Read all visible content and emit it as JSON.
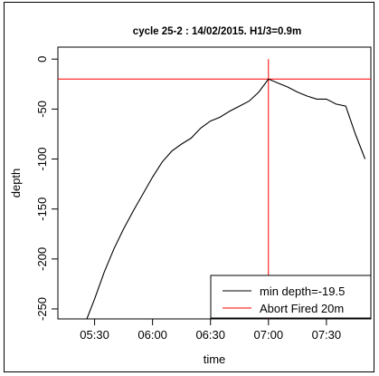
{
  "chart_data": {
    "type": "line",
    "title": "cycle 25-2 : 14/02/2015. H1/3=0.9m",
    "xlabel": "time",
    "ylabel": "depth",
    "xlim": [
      "05:11",
      "07:53"
    ],
    "ylim": [
      -260,
      12
    ],
    "x_ticks": [
      "05:30",
      "06:00",
      "06:30",
      "07:00",
      "07:30"
    ],
    "y_ticks": [
      0,
      -50,
      -100,
      -150,
      -200,
      -250
    ],
    "grid": false,
    "legend_position": "bottom-right",
    "series": [
      {
        "name": "min depth=-19.5",
        "color": "#000000",
        "x": [
          "05:26",
          "05:30",
          "05:35",
          "05:40",
          "05:45",
          "05:50",
          "05:55",
          "06:00",
          "06:05",
          "06:10",
          "06:15",
          "06:20",
          "06:25",
          "06:30",
          "06:35",
          "06:40",
          "06:45",
          "06:50",
          "06:55",
          "07:00",
          "07:05",
          "07:10",
          "07:15",
          "07:20",
          "07:25",
          "07:30",
          "07:35",
          "07:40",
          "07:45",
          "07:50"
        ],
        "y": [
          -260,
          -240,
          -213,
          -190,
          -170,
          -152,
          -135,
          -118,
          -103,
          -92,
          -85,
          -79,
          -69,
          -62,
          -58,
          -52,
          -47,
          -42,
          -33,
          -20,
          -24,
          -28,
          -33,
          -37,
          -40,
          -40,
          -45,
          -47,
          -75,
          -100
        ]
      }
    ],
    "reference_lines": [
      {
        "name": "Abort Fired 20m",
        "color": "#ff0000",
        "orientation": "horizontal",
        "value": -20
      },
      {
        "name": "Abort Fired 20m",
        "color": "#ff0000",
        "orientation": "vertical",
        "value": "07:00"
      }
    ]
  }
}
